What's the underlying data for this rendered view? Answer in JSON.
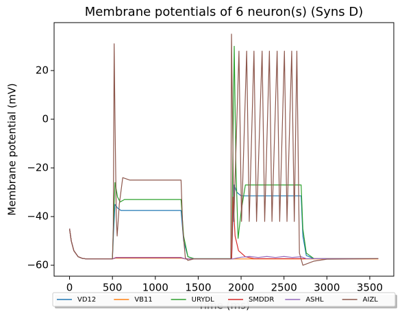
{
  "chart_data": {
    "type": "line",
    "title": "Membrane potentials of 6 neuron(s) (Syns D)",
    "xlabel": "Time (ms)",
    "ylabel": "Membrane potential (mV)",
    "xlim": [
      -180,
      3780
    ],
    "ylim": [
      -64.5,
      39.7
    ],
    "xticks": [
      0,
      500,
      1000,
      1500,
      2000,
      2500,
      3000,
      3500
    ],
    "yticks": [
      {
        "value": -60,
        "label": "−60"
      },
      {
        "value": -40,
        "label": "−40"
      },
      {
        "value": -20,
        "label": "−20"
      },
      0,
      20
    ],
    "legend": "lower center",
    "series": [
      {
        "name": "VD12",
        "color": "#1f77b4",
        "x": [
          0,
          20,
          50,
          100,
          150,
          200,
          500,
          515,
          530,
          560,
          600,
          1300,
          1330,
          1380,
          1450,
          1890,
          1905,
          1920,
          1950,
          2000,
          2700,
          2720,
          2760,
          2850,
          3600
        ],
        "values": [
          -45,
          -50,
          -54,
          -56.5,
          -57.2,
          -57.4,
          -57.4,
          -45,
          -35,
          -36.5,
          -37.5,
          -37.5,
          -50,
          -56.5,
          -57.3,
          -57.3,
          -40,
          -27,
          -30,
          -31.5,
          -31.5,
          -48,
          -56,
          -57.3,
          -57.3
        ]
      },
      {
        "name": "VB11",
        "color": "#ff7f0e",
        "x": [
          0,
          20,
          50,
          100,
          150,
          200,
          500,
          540,
          1300,
          1350,
          3600
        ],
        "values": [
          -45,
          -50,
          -54,
          -56.5,
          -57.2,
          -57.4,
          -57.4,
          -57.1,
          -57.1,
          -57.4,
          -57.4
        ]
      },
      {
        "name": "URYDL",
        "color": "#2ca02c",
        "x": [
          0,
          20,
          50,
          100,
          150,
          200,
          500,
          515,
          530,
          560,
          590,
          640,
          1300,
          1330,
          1380,
          1450,
          1890,
          1905,
          1920,
          1940,
          1965,
          2000,
          2050,
          2700,
          2720,
          2760,
          2850,
          3600
        ],
        "values": [
          -45,
          -50,
          -54,
          -56.5,
          -57.2,
          -57.4,
          -57.4,
          -40,
          -26,
          -32,
          -34,
          -33,
          -33,
          -48,
          -56.5,
          -57.3,
          -57.3,
          -10,
          30,
          -20,
          -49,
          -38,
          -27,
          -27,
          -45,
          -55,
          -57.3,
          -57.3
        ]
      },
      {
        "name": "SMDDR",
        "color": "#d62728",
        "x": [
          0,
          20,
          50,
          100,
          150,
          200,
          500,
          540,
          1300,
          1350,
          1890,
          1905,
          1930,
          1970,
          2050,
          2150,
          3600
        ],
        "values": [
          -45,
          -50,
          -54,
          -56.5,
          -57.2,
          -57.4,
          -57.4,
          -56.8,
          -56.8,
          -57.4,
          -57.4,
          -32,
          -48,
          -54,
          -56.5,
          -57.3,
          -57.3
        ]
      },
      {
        "name": "ASHL",
        "color": "#9467bd",
        "x": [
          0,
          20,
          50,
          100,
          150,
          200,
          500,
          540,
          1300,
          1350,
          1900,
          2000,
          2100,
          2200,
          2300,
          2400,
          2500,
          2600,
          2700,
          2760,
          3600
        ],
        "values": [
          -45,
          -50,
          -54,
          -56.5,
          -57.2,
          -57.4,
          -57.4,
          -56.9,
          -56.9,
          -57.4,
          -57.4,
          -56.7,
          -56.4,
          -56.8,
          -56.4,
          -56.8,
          -56.4,
          -56.8,
          -56.5,
          -57.3,
          -57.3
        ]
      },
      {
        "name": "AIZL",
        "color": "#8c564b",
        "x": [
          0,
          20,
          50,
          100,
          150,
          200,
          500,
          510,
          520,
          530,
          545,
          555,
          580,
          620,
          700,
          1300,
          1320,
          1350,
          1380,
          1450,
          1880,
          1888,
          1900,
          1915,
          1975,
          2005,
          2065,
          2095,
          2150,
          2180,
          2245,
          2275,
          2330,
          2360,
          2420,
          2450,
          2505,
          2535,
          2590,
          2620,
          2650,
          2680,
          2720,
          2850,
          3000,
          3600
        ],
        "values": [
          -45,
          -50,
          -54,
          -56.5,
          -57.2,
          -57.4,
          -57.4,
          -45,
          31,
          0,
          -40,
          -48,
          -35,
          -24,
          -25,
          -25,
          -45,
          -57,
          -58,
          -57.4,
          -57.4,
          35,
          0,
          -42,
          28,
          -42,
          28,
          -42,
          28,
          -42,
          28,
          -42,
          28,
          -42,
          28,
          -42,
          28,
          -42,
          28,
          -42,
          28,
          -55,
          -60,
          -58.3,
          -57.5,
          -57.3
        ]
      }
    ]
  }
}
